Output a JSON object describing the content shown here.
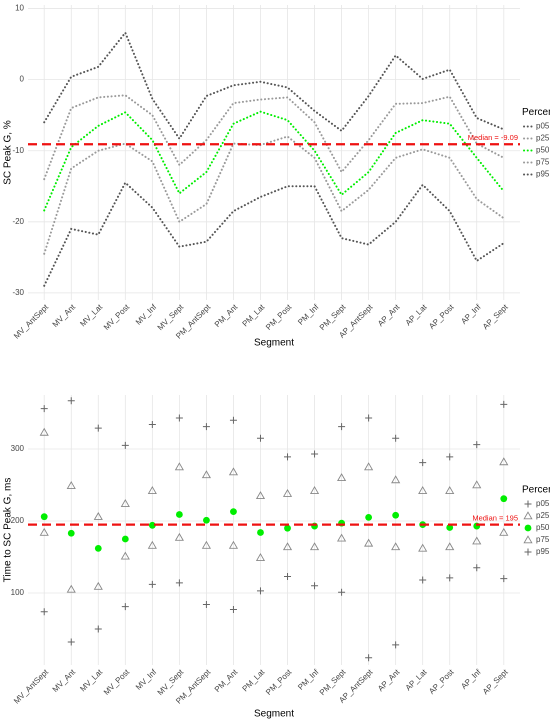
{
  "chart_data": [
    {
      "type": "line",
      "y_label": "SC Peak G, %",
      "x_label": "Segment",
      "legend_title": "Percentile",
      "categories": [
        "MV_AntSept",
        "MV_Ant",
        "MV_Lat",
        "MV_Post",
        "MV_Inf",
        "MV_Sept",
        "PM_AntSept",
        "PM_Ant",
        "PM_Lat",
        "PM_Post",
        "PM_Inf",
        "PM_Sept",
        "AP_AntSept",
        "AP_Ant",
        "AP_Lat",
        "AP_Post",
        "AP_Inf",
        "AP_Sept"
      ],
      "ylim": [
        -31,
        10.5
      ],
      "yticks": [
        -30,
        -20,
        -10,
        0,
        10
      ],
      "grid": true,
      "median": -9.09,
      "median_label": "Median = -9.09",
      "median_color": "#ee1111",
      "series": [
        {
          "name": "p05",
          "color": "#555555",
          "values": [
            -29,
            -21,
            -21.8,
            -14.5,
            -18,
            -23.5,
            -22.8,
            -18.5,
            -16.5,
            -15,
            -15,
            -22.3,
            -23.2,
            -20,
            -14.8,
            -18.5,
            -25.5,
            -23
          ]
        },
        {
          "name": "p25",
          "color": "#9a9a9a",
          "values": [
            -24.5,
            -12.5,
            -10,
            -9,
            -11.5,
            -20,
            -17.5,
            -9,
            -9.2,
            -8,
            -11,
            -18.5,
            -15.5,
            -11,
            -9.8,
            -11,
            -16.8,
            -19.5
          ]
        },
        {
          "name": "p50",
          "color": "#00ee00",
          "values": [
            -18.4,
            -9.5,
            -6.5,
            -4.6,
            -8.5,
            -16,
            -13,
            -6.2,
            -4.5,
            -5.7,
            -10,
            -16.2,
            -13,
            -7.5,
            -5.7,
            -6.2,
            -11,
            -15.7
          ]
        },
        {
          "name": "p75",
          "color": "#9a9a9a",
          "values": [
            -14,
            -4,
            -2.5,
            -2.2,
            -5,
            -12,
            -8.5,
            -3.3,
            -2.8,
            -2.5,
            -6,
            -13,
            -8.5,
            -3.4,
            -3.3,
            -2.4,
            -9,
            -11
          ]
        },
        {
          "name": "p95",
          "color": "#555555",
          "values": [
            -6,
            0.4,
            1.8,
            6.6,
            -2.7,
            -8.3,
            -2.3,
            -0.8,
            -0.3,
            -1.1,
            -4.4,
            -7.2,
            -2.3,
            3.4,
            0.1,
            1.4,
            -5.4,
            -7
          ]
        }
      ]
    },
    {
      "type": "scatter",
      "y_label": "Time to SC Peak G, ms",
      "x_label": "Segment",
      "legend_title": "Percentile",
      "categories": [
        "MV_AntSept",
        "MV_Ant",
        "MV_Lat",
        "MV_Post",
        "MV_Inf",
        "MV_Sept",
        "PM_AntSept",
        "PM_Ant",
        "PM_Lat",
        "PM_Post",
        "PM_Inf",
        "PM_Sept",
        "AP_AntSept",
        "AP_Ant",
        "AP_Lat",
        "AP_Post",
        "AP_Inf",
        "AP_Sept"
      ],
      "ylim": [
        0,
        375
      ],
      "yticks": [
        100,
        200,
        300
      ],
      "grid": true,
      "median": 195,
      "median_label": "Median = 195",
      "median_color": "#ee1111",
      "series": [
        {
          "name": "p05",
          "color": "#666666",
          "marker": "plus",
          "values": [
            74,
            32,
            50,
            81,
            112,
            114,
            84,
            77,
            103,
            123,
            110,
            101,
            10,
            28,
            118,
            121,
            135,
            120
          ]
        },
        {
          "name": "p25",
          "color": "#888888",
          "marker": "triangle",
          "values": [
            184,
            105,
            109,
            151,
            166,
            177,
            166,
            166,
            149,
            164,
            164,
            176,
            169,
            164,
            162,
            164,
            172,
            184
          ]
        },
        {
          "name": "p50",
          "color": "#00ee00",
          "marker": "circle",
          "values": [
            206,
            183,
            162,
            175,
            194,
            209,
            201,
            213,
            184,
            190,
            193,
            197,
            205,
            208,
            195,
            191,
            193,
            231
          ]
        },
        {
          "name": "p75",
          "color": "#888888",
          "marker": "triangle",
          "values": [
            323,
            249,
            206,
            224,
            242,
            275,
            264,
            268,
            235,
            238,
            242,
            260,
            275,
            257,
            242,
            242,
            250,
            282
          ]
        },
        {
          "name": "p95",
          "color": "#666666",
          "marker": "plus",
          "values": [
            356,
            367,
            329,
            305,
            334,
            343,
            331,
            340,
            315,
            289,
            293,
            331,
            343,
            315,
            281,
            289,
            306,
            362
          ]
        }
      ]
    }
  ]
}
